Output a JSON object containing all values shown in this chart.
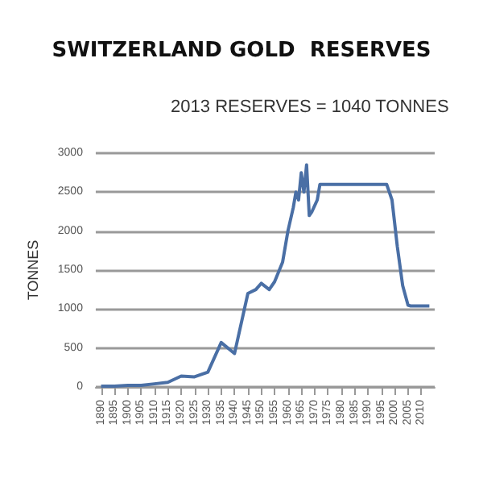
{
  "chart_data": {
    "type": "line",
    "title": "SWITZERLAND GOLD  RESERVES",
    "subtitle": "2013 RESERVES = 1040 TONNES",
    "ylabel": "TONNES",
    "x": [
      1890,
      1895,
      1900,
      1905,
      1910,
      1915,
      1920,
      1925,
      1930,
      1935,
      1940,
      1945,
      1948,
      1950,
      1953,
      1955,
      1958,
      1960,
      1962,
      1963,
      1964,
      1965,
      1966,
      1967,
      1968,
      1969,
      1971,
      1972,
      1997,
      1999,
      2001,
      2003,
      2005,
      2006,
      2013
    ],
    "series": [
      {
        "color": "#4a6fa5",
        "values": [
          10,
          10,
          20,
          20,
          40,
          60,
          140,
          130,
          190,
          570,
          430,
          1200,
          1250,
          1330,
          1250,
          1350,
          1600,
          2000,
          2300,
          2500,
          2400,
          2750,
          2500,
          2850,
          2200,
          2250,
          2400,
          2600,
          2600,
          2400,
          1800,
          1300,
          1050,
          1040,
          1040
        ]
      }
    ],
    "xlim": [
      1888,
      2015
    ],
    "xticks": [
      1890,
      1895,
      1900,
      1905,
      1910,
      1915,
      1920,
      1925,
      1930,
      1935,
      1940,
      1945,
      1950,
      1955,
      1960,
      1965,
      1970,
      1975,
      1980,
      1985,
      1990,
      1995,
      2000,
      2005,
      2010
    ],
    "ylim": [
      0,
      3000
    ],
    "yticks": [
      0,
      500,
      1000,
      1500,
      2000,
      2500,
      3000
    ],
    "grid": "y",
    "marker": "none",
    "line_style": "solid"
  }
}
